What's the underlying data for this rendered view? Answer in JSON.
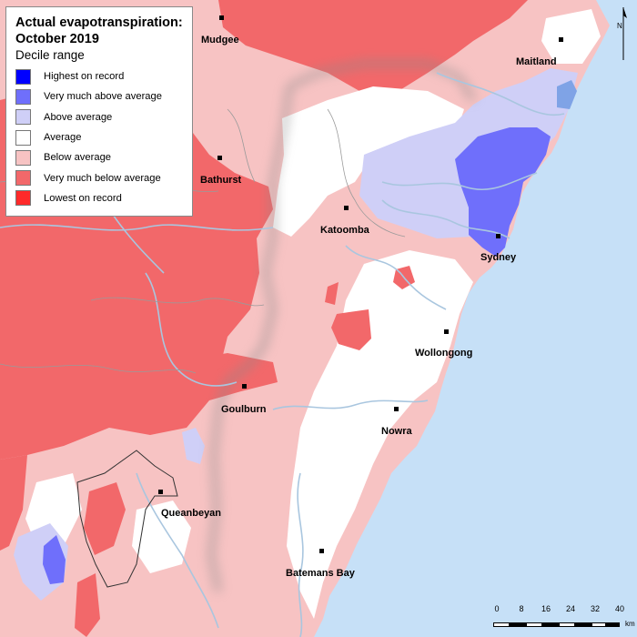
{
  "legend": {
    "title_line1": "Actual evapotranspiration:",
    "title_line2": "October 2019",
    "subtitle": "Decile range",
    "items": [
      {
        "label": "Highest on record",
        "color": "#0000ff"
      },
      {
        "label": "Very much above average",
        "color": "#6f6ffb"
      },
      {
        "label": "Above average",
        "color": "#cfcff7"
      },
      {
        "label": "Average",
        "color": "#ffffff"
      },
      {
        "label": "Below average",
        "color": "#f7c3c3"
      },
      {
        "label": "Very much below average",
        "color": "#f2686a"
      },
      {
        "label": "Lowest on record",
        "color": "#ff2a2a"
      }
    ]
  },
  "towns": {
    "mudgee": "Mudgee",
    "maitland": "Maitland",
    "bathurst": "Bathurst",
    "katoomba": "Katoomba",
    "sydney": "Sydney",
    "wollongong": "Wollongong",
    "goulburn": "Goulburn",
    "nowra": "Nowra",
    "queanbeyan": "Queanbeyan",
    "batemans_bay": "Batemans Bay"
  },
  "scale": {
    "labels": [
      "0",
      "8",
      "16",
      "24",
      "32",
      "40"
    ],
    "units": "km"
  },
  "north_arrow": {
    "letter": "N",
    "icon": "north-arrow-icon"
  },
  "colors": {
    "ocean": "#c6e0f7",
    "rivers": "#a9c6df",
    "boundaries": "#9a9a9a"
  }
}
